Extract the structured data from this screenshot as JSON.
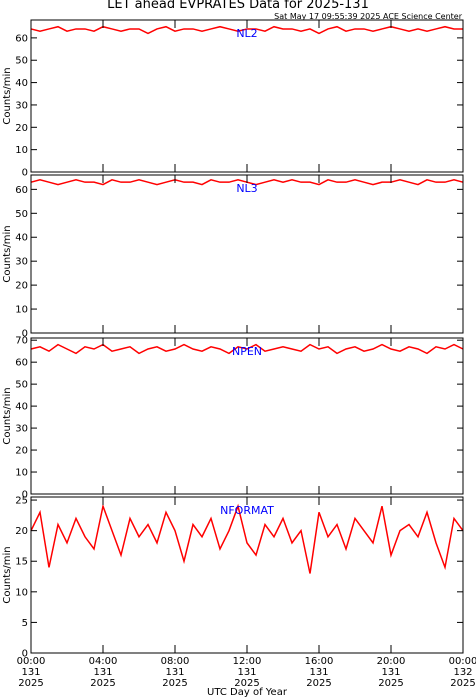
{
  "title": "LET ahead EVPRATES Data for 2025-131",
  "subtitle": "Sat May 17 09:55:39 2025 ACE Science Center",
  "chart_data": [
    {
      "type": "line",
      "label": "NL2",
      "ylabel": "Counts/min",
      "xlim": [
        0,
        24
      ],
      "xticks": [
        0,
        4,
        8,
        12,
        16,
        20,
        24
      ],
      "ylim": [
        0,
        68
      ],
      "yticks": [
        0,
        10,
        20,
        30,
        40,
        50,
        60
      ],
      "x": [
        0,
        0.5,
        1,
        1.5,
        2,
        2.5,
        3,
        3.5,
        4,
        4.5,
        5,
        5.5,
        6,
        6.5,
        7,
        7.5,
        8,
        8.5,
        9,
        9.5,
        10,
        10.5,
        11,
        11.5,
        12,
        12.5,
        13,
        13.5,
        14,
        14.5,
        15,
        15.5,
        16,
        16.5,
        17,
        17.5,
        18,
        18.5,
        19,
        19.5,
        20,
        20.5,
        21,
        21.5,
        22,
        22.5,
        23,
        23.5,
        24
      ],
      "series": [
        {
          "color": "#ff0000",
          "values": [
            64,
            63,
            64,
            65,
            63,
            64,
            64,
            63,
            65,
            64,
            63,
            64,
            64,
            62,
            64,
            65,
            63,
            64,
            64,
            63,
            64,
            65,
            64,
            63,
            64,
            64,
            63,
            65,
            64,
            64,
            63,
            64,
            62,
            64,
            65,
            63,
            64,
            64,
            63,
            64,
            65,
            64,
            63,
            64,
            63,
            64,
            65,
            64,
            64
          ]
        }
      ]
    },
    {
      "type": "line",
      "label": "NL3",
      "ylabel": "Counts/min",
      "xlim": [
        0,
        24
      ],
      "xticks": [
        0,
        4,
        8,
        12,
        16,
        20,
        24
      ],
      "ylim": [
        0,
        66
      ],
      "yticks": [
        0,
        10,
        20,
        30,
        40,
        50,
        60
      ],
      "x": [
        0,
        0.5,
        1,
        1.5,
        2,
        2.5,
        3,
        3.5,
        4,
        4.5,
        5,
        5.5,
        6,
        6.5,
        7,
        7.5,
        8,
        8.5,
        9,
        9.5,
        10,
        10.5,
        11,
        11.5,
        12,
        12.5,
        13,
        13.5,
        14,
        14.5,
        15,
        15.5,
        16,
        16.5,
        17,
        17.5,
        18,
        18.5,
        19,
        19.5,
        20,
        20.5,
        21,
        21.5,
        22,
        22.5,
        23,
        23.5,
        24
      ],
      "series": [
        {
          "color": "#ff0000",
          "values": [
            63,
            64,
            63,
            62,
            63,
            64,
            63,
            63,
            62,
            64,
            63,
            63,
            64,
            63,
            62,
            63,
            64,
            63,
            63,
            62,
            64,
            63,
            63,
            64,
            63,
            62,
            63,
            64,
            63,
            64,
            63,
            63,
            62,
            64,
            63,
            63,
            64,
            63,
            62,
            63,
            63,
            64,
            63,
            62,
            64,
            63,
            63,
            64,
            63
          ]
        }
      ]
    },
    {
      "type": "line",
      "label": "NPEN",
      "ylabel": "Counts/min",
      "xlim": [
        0,
        24
      ],
      "xticks": [
        0,
        4,
        8,
        12,
        16,
        20,
        24
      ],
      "ylim": [
        0,
        71
      ],
      "yticks": [
        0,
        10,
        20,
        30,
        40,
        50,
        60,
        70
      ],
      "x": [
        0,
        0.5,
        1,
        1.5,
        2,
        2.5,
        3,
        3.5,
        4,
        4.5,
        5,
        5.5,
        6,
        6.5,
        7,
        7.5,
        8,
        8.5,
        9,
        9.5,
        10,
        10.5,
        11,
        11.5,
        12,
        12.5,
        13,
        13.5,
        14,
        14.5,
        15,
        15.5,
        16,
        16.5,
        17,
        17.5,
        18,
        18.5,
        19,
        19.5,
        20,
        20.5,
        21,
        21.5,
        22,
        22.5,
        23,
        23.5,
        24
      ],
      "series": [
        {
          "color": "#ff0000",
          "values": [
            66,
            67,
            65,
            68,
            66,
            64,
            67,
            66,
            68,
            65,
            66,
            67,
            64,
            66,
            67,
            65,
            66,
            68,
            66,
            65,
            67,
            66,
            64,
            67,
            66,
            68,
            65,
            66,
            67,
            66,
            65,
            68,
            66,
            67,
            64,
            66,
            67,
            65,
            66,
            68,
            66,
            65,
            67,
            66,
            64,
            67,
            66,
            68,
            66
          ]
        }
      ]
    },
    {
      "type": "line",
      "label": "NFORMAT",
      "ylabel": "Counts/min",
      "xlabel": "UTC Day of Year",
      "xlim": [
        0,
        24
      ],
      "xticks": [
        {
          "value": 0,
          "label": [
            "00:00",
            "131",
            "2025"
          ]
        },
        {
          "value": 4,
          "label": [
            "04:00",
            "131",
            "2025"
          ]
        },
        {
          "value": 8,
          "label": [
            "08:00",
            "131",
            "2025"
          ]
        },
        {
          "value": 12,
          "label": [
            "12:00",
            "131",
            "2025"
          ]
        },
        {
          "value": 16,
          "label": [
            "16:00",
            "131",
            "2025"
          ]
        },
        {
          "value": 20,
          "label": [
            "20:00",
            "131",
            "2025"
          ]
        },
        {
          "value": 24,
          "label": [
            "00:00",
            "132",
            "2025"
          ]
        }
      ],
      "ylim": [
        0,
        25.5
      ],
      "yticks": [
        0,
        5,
        10,
        15,
        20,
        25
      ],
      "x": [
        0,
        0.5,
        1,
        1.5,
        2,
        2.5,
        3,
        3.5,
        4,
        4.5,
        5,
        5.5,
        6,
        6.5,
        7,
        7.5,
        8,
        8.5,
        9,
        9.5,
        10,
        10.5,
        11,
        11.5,
        12,
        12.5,
        13,
        13.5,
        14,
        14.5,
        15,
        15.5,
        16,
        16.5,
        17,
        17.5,
        18,
        18.5,
        19,
        19.5,
        20,
        20.5,
        21,
        21.5,
        22,
        22.5,
        23,
        23.5,
        24
      ],
      "series": [
        {
          "color": "#ff0000",
          "values": [
            20,
            23,
            14,
            21,
            18,
            22,
            19,
            17,
            24,
            20,
            16,
            22,
            19,
            21,
            18,
            23,
            20,
            15,
            21,
            19,
            22,
            17,
            20,
            24,
            18,
            16,
            21,
            19,
            22,
            18,
            20,
            13,
            23,
            19,
            21,
            17,
            22,
            20,
            18,
            24,
            16,
            20,
            21,
            19,
            23,
            18,
            14,
            22,
            20
          ]
        }
      ]
    }
  ]
}
